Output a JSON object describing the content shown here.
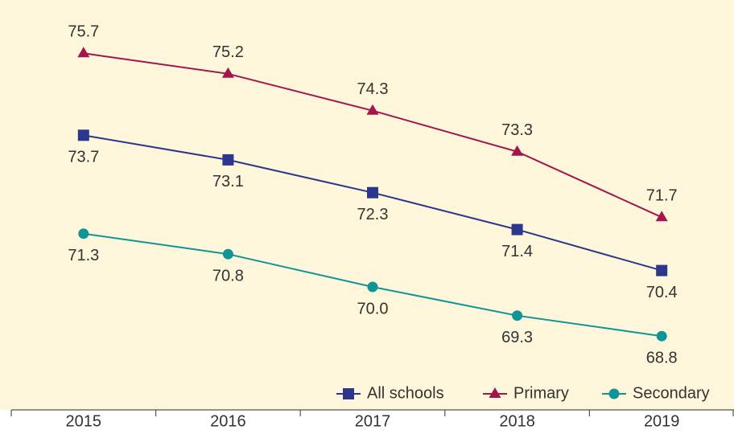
{
  "chart_data": {
    "type": "line",
    "categories": [
      "2015",
      "2016",
      "2017",
      "2018",
      "2019"
    ],
    "series": [
      {
        "name": "All schools",
        "color": "#2b378c",
        "marker": "square",
        "values": [
          73.7,
          73.1,
          72.3,
          71.4,
          70.4
        ],
        "value_labels": [
          "73.7",
          "73.1",
          "72.3",
          "71.4",
          "70.4"
        ]
      },
      {
        "name": "Primary",
        "color": "#a3154b",
        "marker": "triangle",
        "values": [
          75.7,
          75.2,
          74.3,
          73.3,
          71.7
        ],
        "value_labels": [
          "75.7",
          "75.2",
          "74.3",
          "73.3",
          "71.7"
        ]
      },
      {
        "name": "Secondary",
        "color": "#0f9497",
        "marker": "circle",
        "values": [
          71.3,
          70.8,
          70.0,
          69.3,
          68.8
        ],
        "value_labels": [
          "71.3",
          "70.8",
          "70.0",
          "69.3",
          "68.8"
        ]
      }
    ],
    "ylim": [
      67,
      77
    ],
    "legend": "lower right"
  }
}
